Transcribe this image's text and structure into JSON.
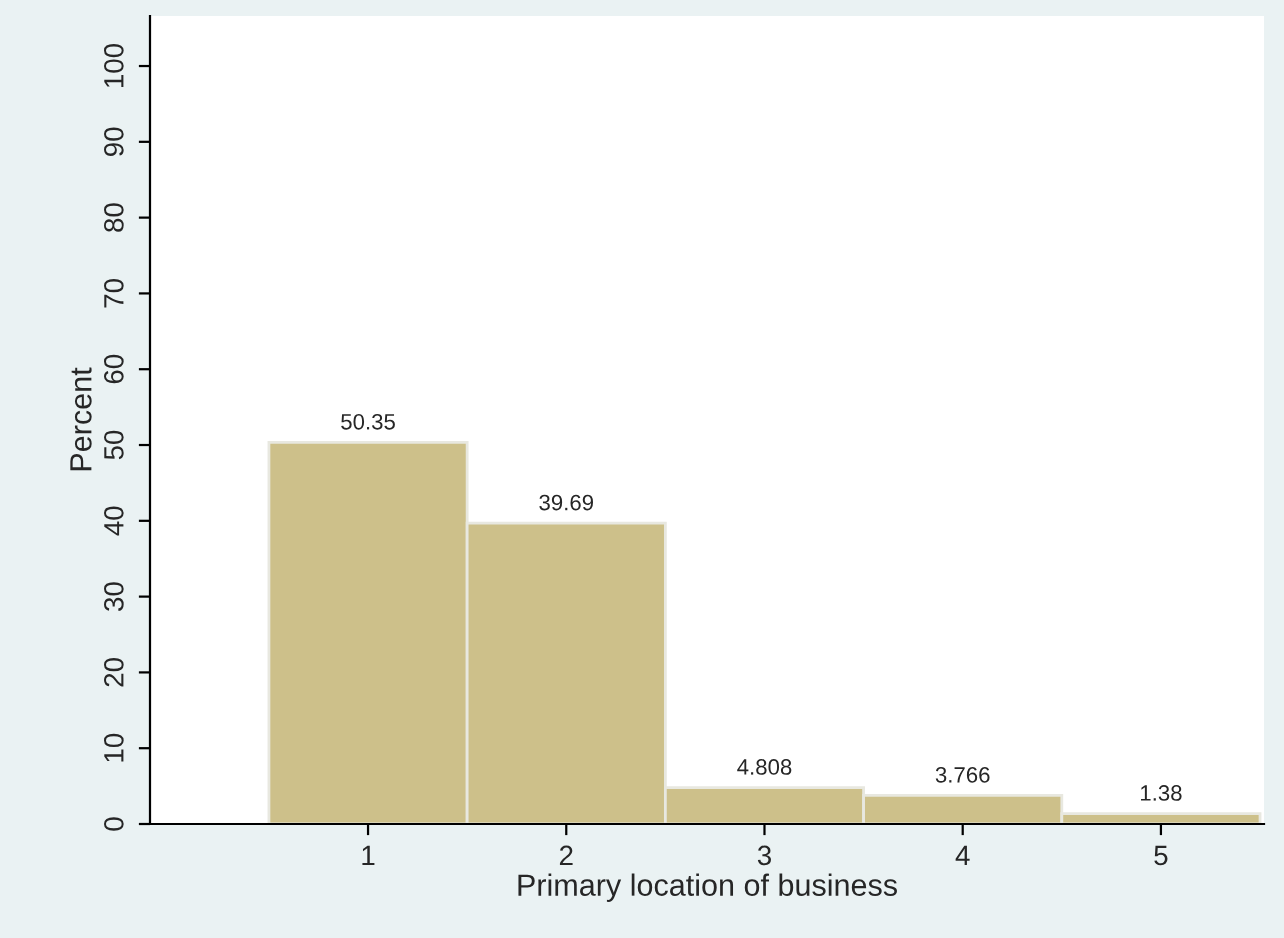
{
  "chart_data": {
    "type": "histogram",
    "xlabel": "Primary location of business",
    "ylabel": "Percent",
    "bins": [
      0.5,
      1.5,
      2.5,
      3.5,
      4.5,
      5.5
    ],
    "values": [
      50.35,
      39.69,
      4.808,
      3.766,
      1.38
    ],
    "color": "#cdc08a",
    "data_labels": true,
    "xlim": [
      -0.1,
      5.52
    ],
    "ylim": [
      0,
      106.6
    ],
    "xticks": [
      1,
      2,
      3,
      4,
      5
    ],
    "yticks": [
      0,
      10,
      20,
      30,
      40,
      50,
      60,
      70,
      80,
      90,
      100
    ],
    "grid": false
  }
}
